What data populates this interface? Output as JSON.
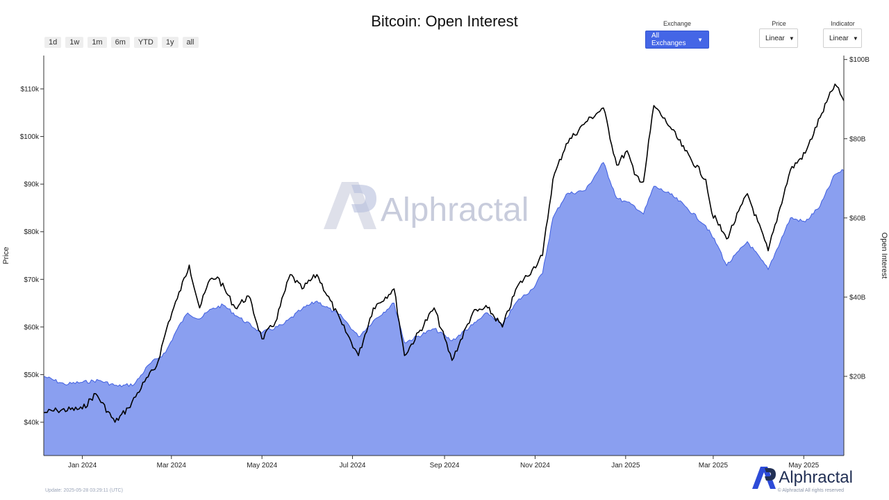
{
  "header": {
    "title": "Bitcoin: Open Interest"
  },
  "range_buttons": [
    "1d",
    "1w",
    "1m",
    "6m",
    "YTD",
    "1y",
    "all"
  ],
  "controls": {
    "exchange": {
      "label": "Exchange",
      "value": "All Exchanges"
    },
    "price": {
      "label": "Price",
      "value": "Linear"
    },
    "indicator": {
      "label": "Indicator",
      "value": "Linear"
    }
  },
  "watermark": "Alphractal",
  "footer": {
    "update": "Update: 2025-05-28 03:29:11 (UTC)",
    "logo_text": "Alphractal",
    "copyright": "© Alphractal All rights reserved"
  },
  "colors": {
    "price_line": "#000000",
    "oi_fill": "#8a9ff0",
    "oi_line": "#3f5ee0",
    "watermark": "#c8ccdc",
    "logo": "#2d4bd8"
  },
  "chart_data": {
    "type": "area",
    "x_axis": {
      "ticks": [
        "2024-01-01",
        "2024-03-01",
        "2024-05-01",
        "2024-07-01",
        "2024-09-01",
        "2024-11-01",
        "2025-01-01",
        "2025-03-01",
        "2025-05-01"
      ],
      "tick_labels": [
        "Jan 2024",
        "Mar 2024",
        "May 2024",
        "Jul 2024",
        "Sep 2024",
        "Nov 2024",
        "Jan 2025",
        "Mar 2025",
        "May 2025"
      ],
      "range": [
        "2023-12-06",
        "2025-05-28"
      ]
    },
    "left_axis": {
      "label": "Price",
      "range": [
        33000,
        117000
      ],
      "ticks": [
        40000,
        50000,
        60000,
        70000,
        80000,
        90000,
        100000,
        110000
      ],
      "tick_labels": [
        "$40k",
        "$50k",
        "$60k",
        "$70k",
        "$80k",
        "$90k",
        "$100k",
        "$110k"
      ]
    },
    "right_axis": {
      "label": "Open Interest",
      "range": [
        0,
        101000000000
      ],
      "ticks": [
        20000000000,
        40000000000,
        60000000000,
        80000000000,
        100000000000
      ],
      "tick_labels": [
        "$20B",
        "$40B",
        "$60B",
        "$80B",
        "$100B"
      ]
    },
    "grid": false,
    "legend": "none",
    "series": [
      {
        "axis": "left",
        "style": "line",
        "points": [
          [
            "2023-12-06",
            42000
          ],
          [
            "2023-12-15",
            42500
          ],
          [
            "2024-01-01",
            42800
          ],
          [
            "2024-01-10",
            46000
          ],
          [
            "2024-01-23",
            40000
          ],
          [
            "2024-02-01",
            43000
          ],
          [
            "2024-02-12",
            48500
          ],
          [
            "2024-02-20",
            51800
          ],
          [
            "2024-02-28",
            61000
          ],
          [
            "2024-03-05",
            66000
          ],
          [
            "2024-03-13",
            73000
          ],
          [
            "2024-03-20",
            64000
          ],
          [
            "2024-03-27",
            70000
          ],
          [
            "2024-04-01",
            70500
          ],
          [
            "2024-04-13",
            64000
          ],
          [
            "2024-04-22",
            66500
          ],
          [
            "2024-05-01",
            57500
          ],
          [
            "2024-05-10",
            61000
          ],
          [
            "2024-05-20",
            71000
          ],
          [
            "2024-05-28",
            68000
          ],
          [
            "2024-06-07",
            71000
          ],
          [
            "2024-06-24",
            60500
          ],
          [
            "2024-07-05",
            54000
          ],
          [
            "2024-07-15",
            64000
          ],
          [
            "2024-07-29",
            68000
          ],
          [
            "2024-08-05",
            54000
          ],
          [
            "2024-08-25",
            64000
          ],
          [
            "2024-09-06",
            53000
          ],
          [
            "2024-09-20",
            63000
          ],
          [
            "2024-09-30",
            64000
          ],
          [
            "2024-10-10",
            60000
          ],
          [
            "2024-10-20",
            68500
          ],
          [
            "2024-10-30",
            72000
          ],
          [
            "2024-11-06",
            75000
          ],
          [
            "2024-11-13",
            91000
          ],
          [
            "2024-11-22",
            98500
          ],
          [
            "2024-12-05",
            103000
          ],
          [
            "2024-12-17",
            106000
          ],
          [
            "2024-12-26",
            94000
          ],
          [
            "2025-01-02",
            97000
          ],
          [
            "2025-01-07",
            92000
          ],
          [
            "2025-01-13",
            90500
          ],
          [
            "2025-01-20",
            106500
          ],
          [
            "2025-01-31",
            102000
          ],
          [
            "2025-02-10",
            97000
          ],
          [
            "2025-02-24",
            91000
          ],
          [
            "2025-02-28",
            84000
          ],
          [
            "2025-03-10",
            78500
          ],
          [
            "2025-03-24",
            88000
          ],
          [
            "2025-04-07",
            76000
          ],
          [
            "2025-04-22",
            93000
          ],
          [
            "2025-05-02",
            96500
          ],
          [
            "2025-05-12",
            104000
          ],
          [
            "2025-05-22",
            111000
          ],
          [
            "2025-05-28",
            107500
          ]
        ]
      },
      {
        "axis": "right",
        "style": "area",
        "points": [
          [
            "2023-12-06",
            20000000000
          ],
          [
            "2023-12-20",
            18000000000
          ],
          [
            "2024-01-01",
            18500000000
          ],
          [
            "2024-01-12",
            19000000000
          ],
          [
            "2024-01-25",
            17500000000
          ],
          [
            "2024-02-05",
            18000000000
          ],
          [
            "2024-02-15",
            23000000000
          ],
          [
            "2024-02-26",
            26000000000
          ],
          [
            "2024-03-05",
            32000000000
          ],
          [
            "2024-03-12",
            36000000000
          ],
          [
            "2024-03-20",
            34500000000
          ],
          [
            "2024-03-28",
            37000000000
          ],
          [
            "2024-04-05",
            38000000000
          ],
          [
            "2024-04-15",
            35000000000
          ],
          [
            "2024-05-01",
            31000000000
          ],
          [
            "2024-05-15",
            33000000000
          ],
          [
            "2024-05-28",
            37000000000
          ],
          [
            "2024-06-07",
            39000000000
          ],
          [
            "2024-06-24",
            35000000000
          ],
          [
            "2024-07-05",
            30000000000
          ],
          [
            "2024-07-15",
            34000000000
          ],
          [
            "2024-07-29",
            38500000000
          ],
          [
            "2024-08-05",
            28500000000
          ],
          [
            "2024-08-25",
            32000000000
          ],
          [
            "2024-09-06",
            29000000000
          ],
          [
            "2024-09-20",
            33000000000
          ],
          [
            "2024-09-30",
            36000000000
          ],
          [
            "2024-10-10",
            33000000000
          ],
          [
            "2024-10-20",
            39000000000
          ],
          [
            "2024-10-30",
            42000000000
          ],
          [
            "2024-11-06",
            46000000000
          ],
          [
            "2024-11-13",
            60000000000
          ],
          [
            "2024-11-22",
            66000000000
          ],
          [
            "2024-12-05",
            67000000000
          ],
          [
            "2024-12-17",
            74000000000
          ],
          [
            "2024-12-26",
            65000000000
          ],
          [
            "2025-01-07",
            63000000000
          ],
          [
            "2025-01-13",
            61000000000
          ],
          [
            "2025-01-20",
            68000000000
          ],
          [
            "2025-01-31",
            66000000000
          ],
          [
            "2025-02-10",
            63000000000
          ],
          [
            "2025-02-24",
            58000000000
          ],
          [
            "2025-03-04",
            53000000000
          ],
          [
            "2025-03-10",
            48000000000
          ],
          [
            "2025-03-24",
            54000000000
          ],
          [
            "2025-04-07",
            47000000000
          ],
          [
            "2025-04-22",
            60000000000
          ],
          [
            "2025-05-02",
            59000000000
          ],
          [
            "2025-05-12",
            63000000000
          ],
          [
            "2025-05-22",
            71000000000
          ],
          [
            "2025-05-28",
            72000000000
          ]
        ]
      }
    ]
  }
}
